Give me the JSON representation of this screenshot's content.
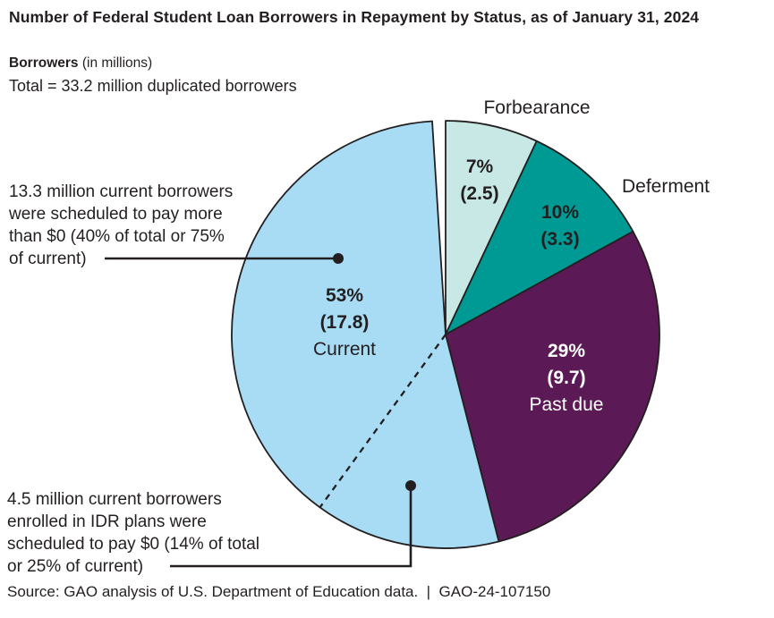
{
  "header": {
    "title": "Number of Federal Student Loan Borrowers in Repayment by Status, as of January 31, 2024",
    "unit_bold": "Borrowers",
    "unit_rest": " (in millions)",
    "total_line": "Total = 33.2 million duplicated borrowers"
  },
  "chart_data": {
    "type": "pie",
    "title": "Number of Federal Student Loan Borrowers in Repayment by Status, as of January 31, 2024",
    "unit": "millions of borrowers",
    "total_millions": 33.2,
    "start_angle_deg": 0,
    "direction": "clockwise",
    "slices": [
      {
        "label": "Forbearance",
        "pct": 7,
        "value": 2.5,
        "value_text": "7%",
        "paren_text": "(2.5)",
        "color": "#c7e8e4",
        "label_position": "outside-top"
      },
      {
        "label": "Deferment",
        "pct": 10,
        "value": 3.3,
        "value_text": "10%",
        "paren_text": "(3.3)",
        "color": "#009a94",
        "label_position": "outside-right"
      },
      {
        "label": "Past due",
        "pct": 29,
        "value": 9.7,
        "value_text": "29%",
        "paren_text": "(9.7)",
        "color": "#5b1a56",
        "label_position": "inside",
        "text_color": "#ffffff"
      },
      {
        "label": "Current",
        "pct": 53,
        "value": 17.8,
        "value_text": "53%",
        "paren_text": "(17.8)",
        "color": "#a8dcf5",
        "label_position": "inside",
        "text_color": "#231f20"
      }
    ],
    "current_split": {
      "pay_more_than_zero": {
        "millions": 13.3,
        "pct_of_total": 40,
        "pct_of_current": 75
      },
      "pay_zero_idr": {
        "millions": 4.5,
        "pct_of_total": 14,
        "pct_of_current": 25
      }
    },
    "stroke_color": "#231f20"
  },
  "callouts": {
    "pay_more": {
      "lines": [
        "13.3 million current borrowers",
        "were scheduled to pay more",
        "than $0 (40% of total or 75%",
        "of current)"
      ]
    },
    "pay_zero": {
      "lines": [
        "4.5 million current borrowers",
        "enrolled in IDR plans were",
        "scheduled to pay $0 (14% of total",
        "or 25% of current)"
      ]
    }
  },
  "source": "Source: GAO analysis of U.S. Department of Education data.  |  GAO-24-107150"
}
